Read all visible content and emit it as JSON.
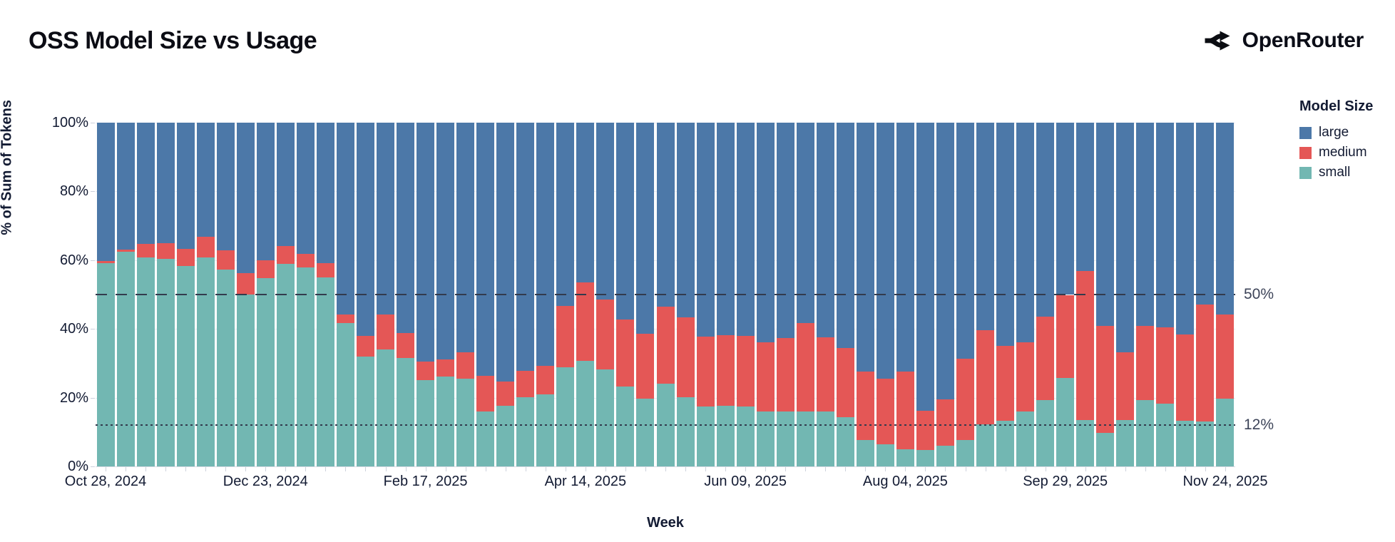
{
  "page": {
    "title": "OSS Model Size vs Usage",
    "brand": "OpenRouter"
  },
  "chart_data": {
    "type": "bar",
    "stacked": true,
    "normalized_percent": true,
    "title": "OSS Model Size vs Usage",
    "xlabel": "Week",
    "ylabel": "% of Sum of Tokens",
    "ylim": [
      0,
      100
    ],
    "y_ticks": [
      {
        "value": 0,
        "label": "0%"
      },
      {
        "value": 20,
        "label": "20%"
      },
      {
        "value": 40,
        "label": "40%"
      },
      {
        "value": 60,
        "label": "60%"
      },
      {
        "value": 80,
        "label": "80%"
      },
      {
        "value": 100,
        "label": "100%"
      }
    ],
    "x_ticks": [
      {
        "index": 0,
        "label": "Oct 28, 2024"
      },
      {
        "index": 8,
        "label": "Dec 23, 2024"
      },
      {
        "index": 16,
        "label": "Feb 17, 2025"
      },
      {
        "index": 24,
        "label": "Apr 14, 2025"
      },
      {
        "index": 32,
        "label": "Jun 09, 2025"
      },
      {
        "index": 40,
        "label": "Aug 04, 2025"
      },
      {
        "index": 48,
        "label": "Sep 29, 2025"
      },
      {
        "index": 56,
        "label": "Nov 24, 2025"
      }
    ],
    "reference_lines": [
      {
        "value": 50,
        "style": "dashed",
        "label": "50%"
      },
      {
        "value": 12,
        "style": "dotted",
        "label": "12%"
      }
    ],
    "legend": {
      "title": "Model Size",
      "position": "top-right",
      "entries": [
        {
          "label": "large",
          "color": "#4C78A8"
        },
        {
          "label": "medium",
          "color": "#E45756"
        },
        {
          "label": "small",
          "color": "#72B7B2"
        }
      ]
    },
    "stack_order_bottom_to_top": [
      "small",
      "medium",
      "large"
    ],
    "bars": [
      {
        "small": 59.2,
        "medium": 0.5,
        "large": 40.3
      },
      {
        "small": 62.5,
        "medium": 0.6,
        "large": 36.9
      },
      {
        "small": 60.7,
        "medium": 4.0,
        "large": 35.3
      },
      {
        "small": 60.3,
        "medium": 4.6,
        "large": 35.1
      },
      {
        "small": 58.4,
        "medium": 4.8,
        "large": 36.8
      },
      {
        "small": 60.7,
        "medium": 6.1,
        "large": 33.2
      },
      {
        "small": 57.2,
        "medium": 5.6,
        "large": 37.2
      },
      {
        "small": 49.9,
        "medium": 6.3,
        "large": 43.8
      },
      {
        "small": 54.7,
        "medium": 5.3,
        "large": 40.0
      },
      {
        "small": 58.9,
        "medium": 5.2,
        "large": 35.9
      },
      {
        "small": 57.8,
        "medium": 4.0,
        "large": 38.2
      },
      {
        "small": 55.0,
        "medium": 4.2,
        "large": 40.8
      },
      {
        "small": 41.7,
        "medium": 2.5,
        "large": 55.8
      },
      {
        "small": 32.0,
        "medium": 6.0,
        "large": 62.0
      },
      {
        "small": 34.1,
        "medium": 10.1,
        "large": 55.8
      },
      {
        "small": 31.5,
        "medium": 7.2,
        "large": 61.3
      },
      {
        "small": 25.2,
        "medium": 5.3,
        "large": 69.5
      },
      {
        "small": 26.1,
        "medium": 5.0,
        "large": 68.9
      },
      {
        "small": 25.5,
        "medium": 7.8,
        "large": 66.7
      },
      {
        "small": 16.0,
        "medium": 10.4,
        "large": 73.6
      },
      {
        "small": 17.6,
        "medium": 7.0,
        "large": 75.4
      },
      {
        "small": 20.1,
        "medium": 7.7,
        "large": 72.2
      },
      {
        "small": 21.0,
        "medium": 8.3,
        "large": 70.7
      },
      {
        "small": 28.8,
        "medium": 17.8,
        "large": 53.4
      },
      {
        "small": 30.8,
        "medium": 22.8,
        "large": 46.4
      },
      {
        "small": 28.3,
        "medium": 20.2,
        "large": 51.5
      },
      {
        "small": 23.3,
        "medium": 19.4,
        "large": 57.3
      },
      {
        "small": 19.8,
        "medium": 18.8,
        "large": 61.4
      },
      {
        "small": 24.0,
        "medium": 22.5,
        "large": 53.5
      },
      {
        "small": 20.2,
        "medium": 23.2,
        "large": 56.6
      },
      {
        "small": 17.4,
        "medium": 20.4,
        "large": 62.2
      },
      {
        "small": 17.6,
        "medium": 20.6,
        "large": 61.8
      },
      {
        "small": 17.4,
        "medium": 20.6,
        "large": 62.0
      },
      {
        "small": 16.0,
        "medium": 20.1,
        "large": 63.9
      },
      {
        "small": 16.0,
        "medium": 21.3,
        "large": 62.7
      },
      {
        "small": 15.9,
        "medium": 25.9,
        "large": 58.2
      },
      {
        "small": 15.9,
        "medium": 21.7,
        "large": 62.4
      },
      {
        "small": 14.3,
        "medium": 20.2,
        "large": 65.5
      },
      {
        "small": 7.7,
        "medium": 19.8,
        "large": 72.5
      },
      {
        "small": 6.4,
        "medium": 19.2,
        "large": 74.4
      },
      {
        "small": 5.0,
        "medium": 22.5,
        "large": 72.5
      },
      {
        "small": 4.8,
        "medium": 11.4,
        "large": 83.8
      },
      {
        "small": 6.0,
        "medium": 13.5,
        "large": 80.5
      },
      {
        "small": 7.7,
        "medium": 23.7,
        "large": 68.6
      },
      {
        "small": 12.2,
        "medium": 27.4,
        "large": 60.4
      },
      {
        "small": 13.3,
        "medium": 21.8,
        "large": 64.9
      },
      {
        "small": 16.0,
        "medium": 20.2,
        "large": 63.8
      },
      {
        "small": 19.3,
        "medium": 24.2,
        "large": 56.5
      },
      {
        "small": 25.7,
        "medium": 24.2,
        "large": 50.1
      },
      {
        "small": 13.4,
        "medium": 43.4,
        "large": 43.2
      },
      {
        "small": 9.8,
        "medium": 31.0,
        "large": 59.2
      },
      {
        "small": 13.4,
        "medium": 19.8,
        "large": 66.8
      },
      {
        "small": 19.3,
        "medium": 21.5,
        "large": 59.2
      },
      {
        "small": 18.3,
        "medium": 22.1,
        "large": 59.6
      },
      {
        "small": 13.3,
        "medium": 25.0,
        "large": 61.7
      },
      {
        "small": 13.1,
        "medium": 33.9,
        "large": 53.0
      },
      {
        "small": 19.8,
        "medium": 24.4,
        "large": 55.8
      }
    ]
  }
}
